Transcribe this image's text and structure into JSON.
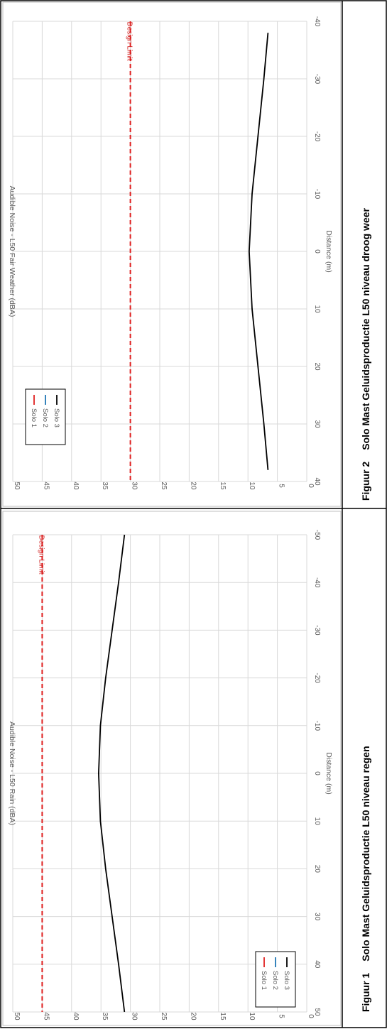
{
  "figures": [
    {
      "caption_number": "Figuur 1",
      "caption_title": "Solo Mast Geluidsproductie L50 niveau regen"
    },
    {
      "caption_number": "Figuur 2",
      "caption_title": "Solo Mast Geluidsproductie L50 niveau droog weer"
    }
  ],
  "chart_data": [
    {
      "type": "line",
      "xlabel": "Distance (m)",
      "ylabel": "Audible Noise - L50 Rain (dBA)",
      "xlim": [
        -50,
        50
      ],
      "ylim": [
        0,
        50
      ],
      "xticks": [
        -50,
        -40,
        -30,
        -20,
        -10,
        0,
        10,
        20,
        30,
        40,
        50
      ],
      "yticks": [
        0,
        5,
        10,
        15,
        20,
        25,
        30,
        35,
        40,
        45,
        50
      ],
      "grid": true,
      "legend_position": "bottom-left",
      "legend": [
        {
          "label": "Solo 1",
          "color": "#e02020"
        },
        {
          "label": "Solo 2",
          "color": "#1f77b4"
        },
        {
          "label": "Solo 3",
          "color": "#000000"
        }
      ],
      "design_limit": {
        "label": "Design Limit",
        "value": 45,
        "color": "#e02020"
      },
      "series": [
        {
          "name": "Solo 3",
          "color": "#000000",
          "x": [
            -50,
            -40,
            -30,
            -20,
            -10,
            0,
            10,
            20,
            30,
            40,
            50
          ],
          "y": [
            31.0,
            32.0,
            33.1,
            34.2,
            35.1,
            35.4,
            35.1,
            34.2,
            33.1,
            32.0,
            31.0
          ]
        }
      ]
    },
    {
      "type": "line",
      "xlabel": "Distance (m)",
      "ylabel": "Audible Noise - L50 Fair Weather (dBA)",
      "xlim": [
        -40,
        40
      ],
      "ylim": [
        0,
        50
      ],
      "xticks": [
        -40,
        -30,
        -20,
        -10,
        0,
        10,
        20,
        30,
        40
      ],
      "yticks": [
        0,
        5,
        10,
        15,
        20,
        25,
        30,
        35,
        40,
        45,
        50
      ],
      "grid": true,
      "legend_position": "top-left",
      "legend": [
        {
          "label": "Solo 1",
          "color": "#e02020"
        },
        {
          "label": "Solo 2",
          "color": "#1f77b4"
        },
        {
          "label": "Solo 3",
          "color": "#000000"
        }
      ],
      "design_limit": {
        "label": "Design Limit",
        "value": 30,
        "color": "#e02020"
      },
      "series": [
        {
          "name": "Solo 3",
          "color": "#000000",
          "x": [
            -38,
            -30,
            -20,
            -10,
            0,
            10,
            20,
            30,
            38
          ],
          "y": [
            6.6,
            7.3,
            8.3,
            9.3,
            9.8,
            9.3,
            8.3,
            7.3,
            6.6
          ]
        }
      ]
    }
  ]
}
